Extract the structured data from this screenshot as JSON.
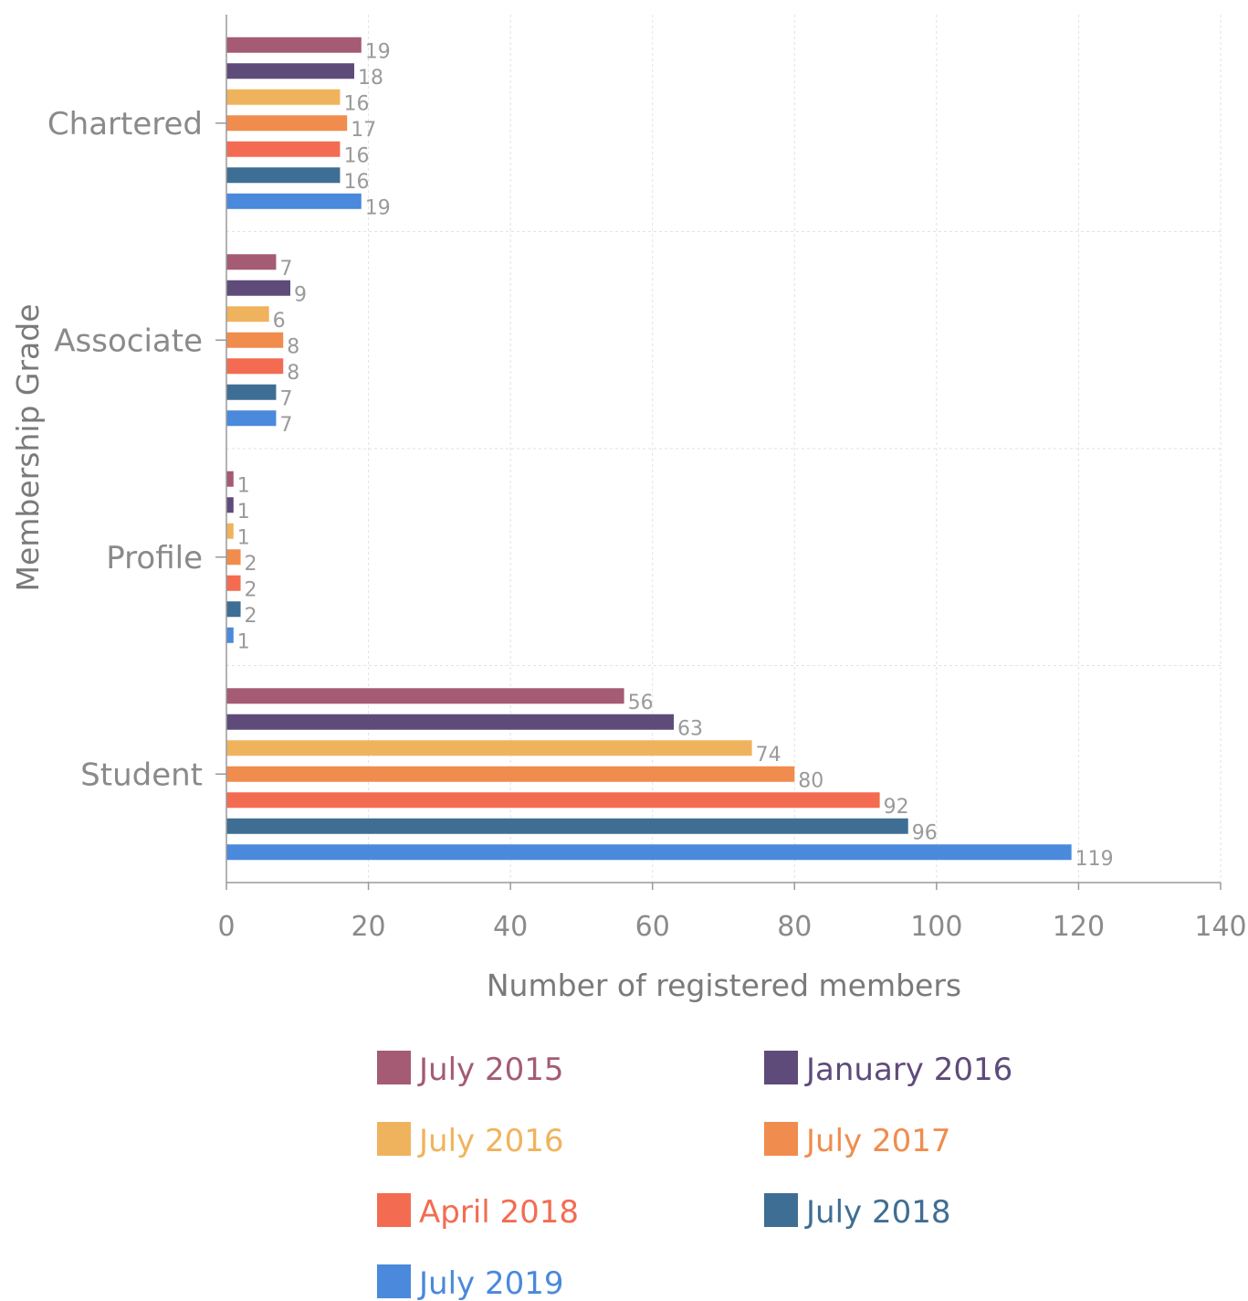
{
  "chart_data": {
    "type": "bar",
    "orientation": "horizontal",
    "categories": [
      "Chartered",
      "Associate",
      "Profile",
      "Student"
    ],
    "series": [
      {
        "name": "July 2015",
        "color": "#a45b73",
        "values": [
          19,
          7,
          1,
          56
        ]
      },
      {
        "name": "January 2016",
        "color": "#5e4b7a",
        "values": [
          18,
          9,
          1,
          63
        ]
      },
      {
        "name": "July 2016",
        "color": "#f0b35d",
        "values": [
          16,
          6,
          1,
          74
        ]
      },
      {
        "name": "July 2017",
        "color": "#f08c4e",
        "values": [
          17,
          8,
          2,
          80
        ]
      },
      {
        "name": "April 2018",
        "color": "#f36c52",
        "values": [
          16,
          8,
          2,
          92
        ]
      },
      {
        "name": "July 2018",
        "color": "#3f6e94",
        "values": [
          16,
          7,
          2,
          96
        ]
      },
      {
        "name": "July 2019",
        "color": "#4a89dc",
        "values": [
          19,
          7,
          1,
          119
        ]
      }
    ],
    "xlabel": "Number of registered members",
    "ylabel": "Membership Grade",
    "xlim": [
      0,
      140
    ],
    "xticks": [
      "0",
      "20",
      "40",
      "60",
      "80",
      "100",
      "120",
      "140"
    ],
    "grid": true,
    "legend": "bottom"
  }
}
